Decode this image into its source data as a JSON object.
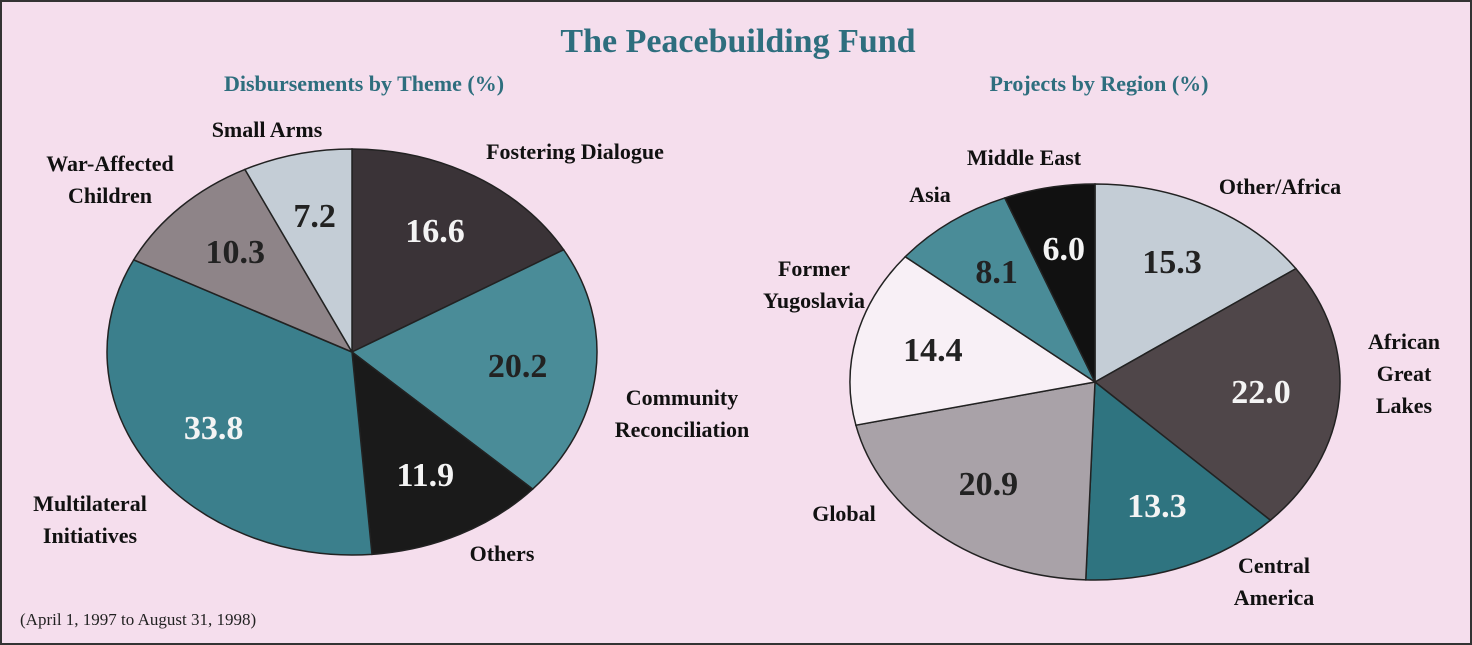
{
  "title": "The Peacebuilding Fund",
  "note": "(April 1, 1997 to August 31, 1998)",
  "chart_data": [
    {
      "type": "pie",
      "title": "Disbursements by Theme (%)",
      "categories": [
        "Fostering Dialogue",
        "Community\nReconciliation",
        "Others",
        "Multilateral\nInitiatives",
        "War-Affected\nChildren",
        "Small Arms"
      ],
      "values": [
        16.6,
        20.2,
        11.9,
        33.8,
        10.3,
        7.2
      ],
      "value_labels": [
        "16.6",
        "20.2",
        "11.9",
        "33.8",
        "10.3",
        "7.2"
      ],
      "colors": [
        "#3a3337",
        "#4a8c98",
        "#1a1a1a",
        "#3b7f8c",
        "#8e8488",
        "#c4cdd6"
      ]
    },
    {
      "type": "pie",
      "title": "Projects by Region (%)",
      "categories": [
        "Other/Africa",
        "African\nGreat\nLakes",
        "Central\nAmerica",
        "Global",
        "Former\nYugoslavia",
        "Asia",
        "Middle East"
      ],
      "values": [
        15.3,
        22.0,
        13.3,
        20.9,
        14.4,
        8.1,
        6.0
      ],
      "value_labels": [
        "15.3",
        "22.0",
        "13.3",
        "20.9",
        "14.4",
        "8.1",
        "6.0"
      ],
      "colors": [
        "#c4cdd6",
        "#4f4649",
        "#2f7480",
        "#a9a2a8",
        "#f8f0f6",
        "#4a8c98",
        "#111111"
      ]
    }
  ]
}
